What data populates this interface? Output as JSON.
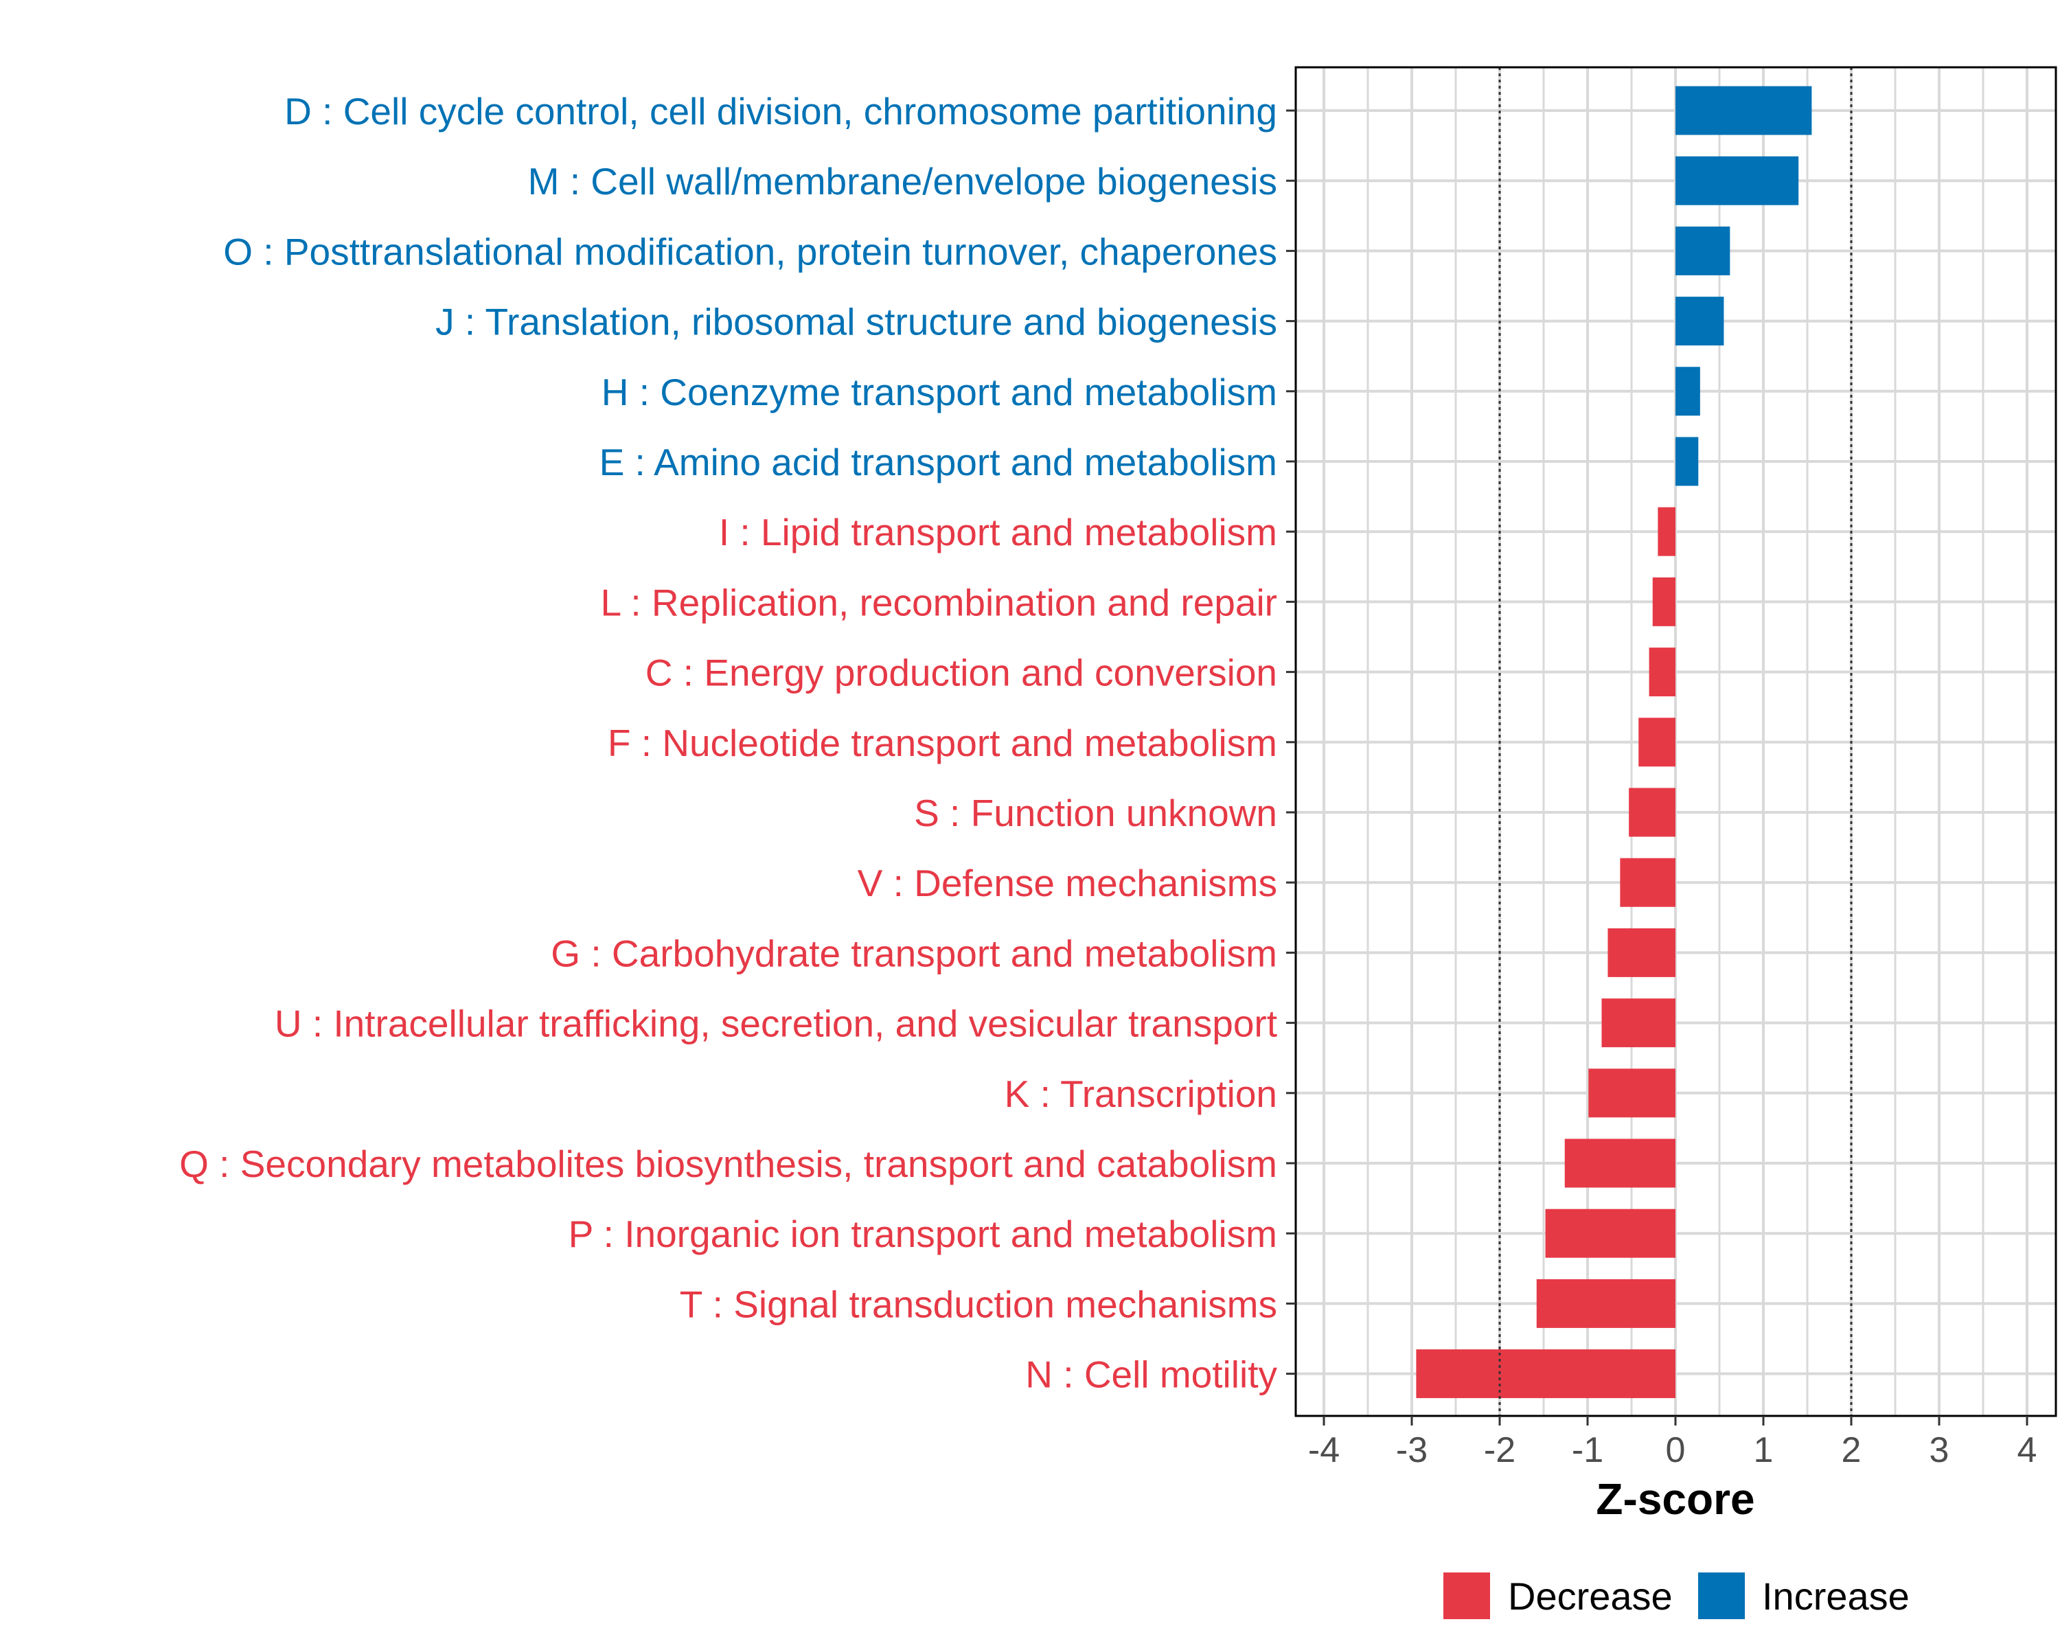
{
  "chart_data": {
    "type": "bar",
    "orientation": "horizontal",
    "xlabel": "Z-score",
    "xlim": [
      -4.3,
      4.3
    ],
    "x_ticks": [
      "-4",
      "-3",
      "-2",
      "-1",
      "0",
      "1",
      "2",
      "3",
      "4"
    ],
    "reference_lines": [
      -2,
      2
    ],
    "grid": true,
    "colors": {
      "Decrease": "#e63946",
      "Increase": "#0072b5"
    },
    "categories": [
      {
        "label": "D : Cell cycle control, cell division, chromosome partitioning",
        "value": 1.55,
        "group": "Increase"
      },
      {
        "label": "M : Cell wall/membrane/envelope biogenesis",
        "value": 1.4,
        "group": "Increase"
      },
      {
        "label": "O : Posttranslational modification, protein turnover, chaperones",
        "value": 0.62,
        "group": "Increase"
      },
      {
        "label": "J : Translation, ribosomal structure and biogenesis",
        "value": 0.55,
        "group": "Increase"
      },
      {
        "label": "H : Coenzyme transport and metabolism",
        "value": 0.28,
        "group": "Increase"
      },
      {
        "label": "E : Amino acid transport and metabolism",
        "value": 0.26,
        "group": "Increase"
      },
      {
        "label": "I : Lipid transport and metabolism",
        "value": -0.2,
        "group": "Decrease"
      },
      {
        "label": "L : Replication, recombination and repair",
        "value": -0.26,
        "group": "Decrease"
      },
      {
        "label": "C : Energy production and conversion",
        "value": -0.3,
        "group": "Decrease"
      },
      {
        "label": "F : Nucleotide transport and metabolism",
        "value": -0.42,
        "group": "Decrease"
      },
      {
        "label": "S : Function unknown",
        "value": -0.53,
        "group": "Decrease"
      },
      {
        "label": "V : Defense mechanisms",
        "value": -0.63,
        "group": "Decrease"
      },
      {
        "label": "G : Carbohydrate transport and metabolism",
        "value": -0.77,
        "group": "Decrease"
      },
      {
        "label": "U : Intracellular trafficking, secretion, and vesicular transport",
        "value": -0.84,
        "group": "Decrease"
      },
      {
        "label": "K : Transcription",
        "value": -0.99,
        "group": "Decrease"
      },
      {
        "label": "Q : Secondary metabolites biosynthesis, transport and catabolism",
        "value": -1.26,
        "group": "Decrease"
      },
      {
        "label": "P : Inorganic ion transport and metabolism",
        "value": -1.48,
        "group": "Decrease"
      },
      {
        "label": "T : Signal transduction mechanisms",
        "value": -1.58,
        "group": "Decrease"
      },
      {
        "label": "N : Cell motility",
        "value": -2.95,
        "group": "Decrease"
      }
    ],
    "legend": {
      "position": "bottom",
      "items": [
        {
          "label": "Decrease"
        },
        {
          "label": "Increase"
        }
      ]
    }
  }
}
